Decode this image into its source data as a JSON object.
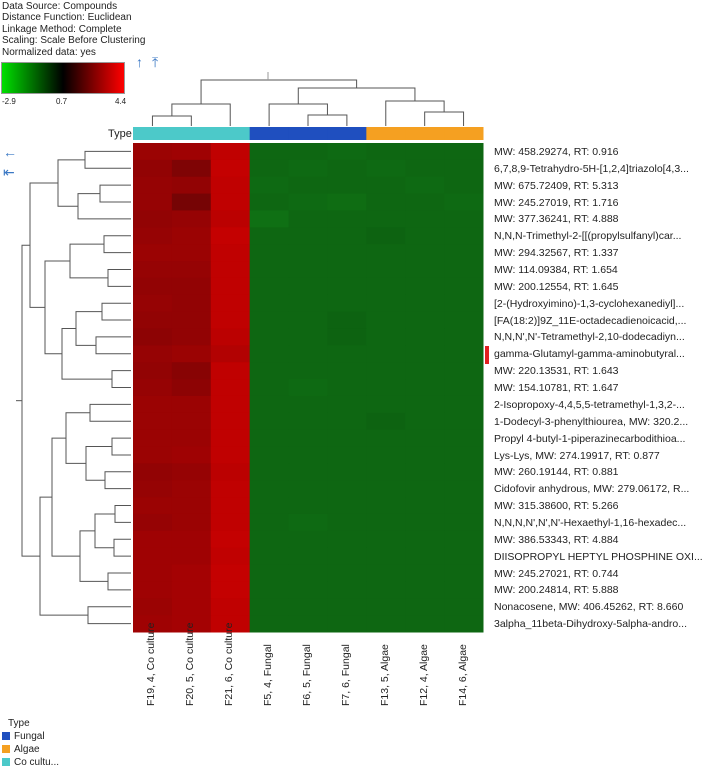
{
  "info": {
    "lines": [
      "Data Source: Compounds",
      "Distance Function: Euclidean",
      "Linkage Method: Complete",
      "Scaling: Scale Before Clustering",
      "Normalized data: yes"
    ]
  },
  "scale": {
    "min_label": "-2.9",
    "mid_label": "0.7",
    "max_label": "4.4",
    "colors": [
      "#00e000",
      "#000000",
      "#ff0000"
    ]
  },
  "nav": {
    "up": "↑",
    "top": "⤒",
    "left": "←",
    "far_left": "⇤"
  },
  "chart_data": {
    "type": "heatmap",
    "type_label": "Type",
    "columns": [
      {
        "label": "F19, 4, Co culture",
        "group": "Co culture"
      },
      {
        "label": "F20, 5, Co culture",
        "group": "Co culture"
      },
      {
        "label": "F21, 6, Co culture",
        "group": "Co culture"
      },
      {
        "label": "F5, 4, Fungal",
        "group": "Fungal"
      },
      {
        "label": "F6, 5, Fungal",
        "group": "Fungal"
      },
      {
        "label": "F7, 6, Fungal",
        "group": "Fungal"
      },
      {
        "label": "F13, 5, Algae",
        "group": "Algae"
      },
      {
        "label": "F12, 4, Algae",
        "group": "Algae"
      },
      {
        "label": "F14, 6, Algae",
        "group": "Algae"
      }
    ],
    "rows": [
      "MW: 458.29274, RT: 0.916",
      "6,7,8,9-Tetrahydro-5H-[1,2,4]triazolo[4,3...",
      "MW: 675.72409, RT: 5.313",
      "MW: 245.27019, RT: 1.716",
      "MW: 377.36241, RT: 4.888",
      "N,N,N-Trimethyl-2-[[(propylsulfanyl)car...",
      "MW: 294.32567, RT: 1.337",
      "MW: 114.09384, RT: 1.654",
      "MW: 200.12554, RT: 1.645",
      "[2-(Hydroxyimino)-1,3-cyclohexanediyl]...",
      "[FA(18:2)]9Z_11E-octadecadienoicacid,...",
      "N,N,N',N'-Tetramethyl-2,10-dodecadiyn...",
      "gamma-Glutamyl-gamma-aminobutyral...",
      "MW: 220.13531, RT: 1.643",
      "MW: 154.10781, RT: 1.647",
      "2-Isopropoxy-4,4,5,5-tetramethyl-1,3,2-...",
      "1-Dodecyl-3-phenylthiourea, MW: 320.2...",
      "Propyl 4-butyl-1-piperazinecarbodithioa...",
      "Lys-Lys, MW: 274.19917, RT: 0.877",
      "MW: 260.19144, RT: 0.881",
      "Cidofovir anhydrous, MW: 279.06172, R...",
      "MW: 315.38600, RT: 5.266",
      "N,N,N,N',N',N'-Hexaethyl-1,16-hexadec...",
      "MW: 386.53343, RT: 4.884",
      "DIISOPROPYL HEPTYL PHOSPHINE OXI...",
      "MW: 245.27021, RT: 0.744",
      "MW: 200.24814, RT: 5.888",
      "Nonacosene, MW: 406.45262, RT: 8.660",
      "3alpha_11beta-Dihydroxy-5alpha-andro..."
    ],
    "values": [
      [
        3.2,
        3.3,
        4.0,
        -2.0,
        -2.0,
        -2.1,
        -2.0,
        -2.0,
        -2.0
      ],
      [
        3.0,
        2.6,
        4.1,
        -2.0,
        -2.1,
        -2.0,
        -2.1,
        -2.0,
        -2.0
      ],
      [
        3.1,
        3.0,
        4.0,
        -2.1,
        -2.0,
        -2.0,
        -2.0,
        -2.1,
        -2.0
      ],
      [
        3.1,
        2.4,
        4.0,
        -2.0,
        -2.1,
        -2.2,
        -2.0,
        -2.0,
        -2.1
      ],
      [
        3.0,
        3.1,
        3.9,
        -2.3,
        -2.0,
        -2.0,
        -2.0,
        -2.0,
        -2.0
      ],
      [
        3.1,
        3.2,
        4.1,
        -2.0,
        -2.0,
        -2.0,
        -1.9,
        -2.0,
        -2.0
      ],
      [
        3.2,
        3.2,
        4.0,
        -2.0,
        -2.0,
        -2.0,
        -2.0,
        -2.0,
        -2.0
      ],
      [
        3.1,
        3.1,
        4.0,
        -2.0,
        -2.0,
        -2.0,
        -2.0,
        -2.0,
        -2.0
      ],
      [
        3.0,
        3.0,
        4.0,
        -2.0,
        -2.0,
        -2.0,
        -2.0,
        -2.0,
        -2.0
      ],
      [
        3.1,
        3.0,
        4.0,
        -2.0,
        -2.0,
        -2.0,
        -2.0,
        -2.0,
        -2.0
      ],
      [
        3.0,
        3.0,
        4.0,
        -2.0,
        -2.0,
        -1.9,
        -2.0,
        -2.0,
        -2.0
      ],
      [
        2.9,
        3.0,
        3.9,
        -2.0,
        -2.0,
        -1.9,
        -2.0,
        -2.0,
        -2.0
      ],
      [
        3.1,
        3.2,
        3.7,
        -2.0,
        -2.0,
        -2.0,
        -2.0,
        -2.0,
        -2.0
      ],
      [
        3.0,
        2.8,
        4.0,
        -2.0,
        -2.0,
        -2.0,
        -2.0,
        -2.0,
        -2.0
      ],
      [
        3.1,
        2.9,
        4.0,
        -2.0,
        -2.1,
        -2.0,
        -2.0,
        -2.0,
        -2.0
      ],
      [
        3.2,
        3.2,
        4.0,
        -2.0,
        -2.0,
        -2.0,
        -2.0,
        -2.0,
        -2.0
      ],
      [
        3.2,
        3.2,
        4.0,
        -2.0,
        -2.0,
        -2.0,
        -1.9,
        -2.0,
        -2.0
      ],
      [
        3.2,
        3.2,
        4.0,
        -2.0,
        -2.0,
        -2.0,
        -2.0,
        -2.0,
        -2.0
      ],
      [
        3.2,
        3.3,
        4.0,
        -2.0,
        -2.0,
        -2.0,
        -2.0,
        -2.0,
        -2.0
      ],
      [
        3.0,
        3.1,
        3.9,
        -2.0,
        -2.0,
        -2.0,
        -2.0,
        -2.0,
        -2.0
      ],
      [
        3.1,
        3.2,
        4.0,
        -2.0,
        -2.0,
        -2.0,
        -2.0,
        -2.0,
        -2.0
      ],
      [
        3.2,
        3.2,
        4.0,
        -2.0,
        -2.0,
        -2.0,
        -2.0,
        -2.0,
        -2.0
      ],
      [
        3.1,
        3.2,
        4.0,
        -2.0,
        -2.1,
        -2.0,
        -2.0,
        -2.0,
        -2.0
      ],
      [
        3.3,
        3.3,
        4.1,
        -2.0,
        -2.0,
        -2.0,
        -2.0,
        -2.0,
        -2.0
      ],
      [
        3.3,
        3.3,
        4.0,
        -2.0,
        -2.0,
        -2.0,
        -2.0,
        -2.0,
        -2.0
      ],
      [
        3.3,
        3.4,
        4.1,
        -2.0,
        -2.0,
        -2.0,
        -2.0,
        -2.0,
        -2.0
      ],
      [
        3.3,
        3.4,
        4.1,
        -2.0,
        -2.0,
        -2.0,
        -2.0,
        -2.0,
        -2.0
      ],
      [
        3.2,
        3.4,
        4.0,
        -2.0,
        -2.0,
        -2.0,
        -2.0,
        -2.0,
        -2.0
      ],
      [
        3.3,
        3.4,
        4.0,
        -2.0,
        -2.0,
        -2.0,
        -2.0,
        -2.0,
        -2.0
      ]
    ],
    "color_range": [
      -2.9,
      0.7,
      4.4
    ],
    "highlighted_row": "gamma-Glutamyl-gamma-aminobutyral..."
  },
  "legend": {
    "title": "Type",
    "items": [
      {
        "label": "Fungal",
        "color": "#1f4fbf"
      },
      {
        "label": "Algae",
        "color": "#f5a021"
      },
      {
        "label": "Co cultu...",
        "color": "#4cc9c9"
      }
    ]
  }
}
